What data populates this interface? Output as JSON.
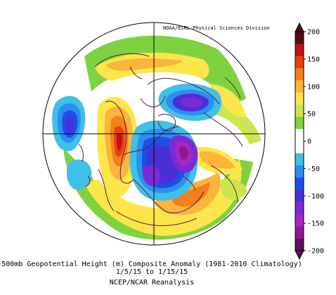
{
  "credit": "NOAA/ESRL Physical Sciences Division",
  "caption": {
    "line1": "500mb Geopotential Height (m) Composite Anomaly (1981-2010 Climatology)",
    "line2": "1/5/15  to 1/15/15",
    "line3": "NCEP/NCAR Reanalysis"
  },
  "colorbar": {
    "ticks": [
      "200",
      "150",
      "100",
      "50",
      "0",
      "-50",
      "-100",
      "-150",
      "-200"
    ],
    "colors": [
      "#4d0f0f",
      "#c0101a",
      "#e8400e",
      "#f47f1c",
      "#fbb43c",
      "#fde64a",
      "#cde64f",
      "#7fd23f",
      "#ffffff",
      "#ffffff",
      "#3fc0e6",
      "#2b8ff0",
      "#1f4ee6",
      "#4a2fd6",
      "#7b2ad6",
      "#a826c3",
      "#8e1b8e",
      "#5e0f5e"
    ]
  },
  "map": {
    "projection": "north-polar-stereographic",
    "field": "500mb geopotential height anomaly",
    "colors": {
      "coast": "#5a1a4a",
      "grid": "#000000"
    }
  }
}
